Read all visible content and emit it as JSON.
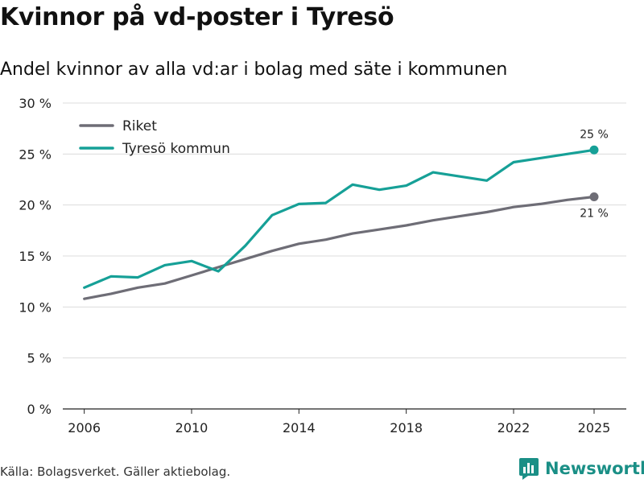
{
  "title": "Kvinnor på vd-poster i Tyresö",
  "subtitle": "Andel kvinnor av alla vd:ar i bolag med säte i kommunen",
  "source": "Källa: Bolagsverket. Gäller aktiebolag.",
  "brand": {
    "name": "Newsworthy",
    "icon": "newsworthy-logo-icon",
    "color": "#1a8f86"
  },
  "chart_data": {
    "type": "line",
    "title": "Kvinnor på vd-poster i Tyresö",
    "subtitle": "Andel kvinnor av alla vd:ar i bolag med säte i kommunen",
    "ylim": [
      0,
      30
    ],
    "xlim": [
      2005.2,
      2026.2
    ],
    "y_ticks": [
      0,
      5,
      10,
      15,
      20,
      25,
      30
    ],
    "y_tick_labels": [
      "0 %",
      "5 %",
      "10 %",
      "15 %",
      "20 %",
      "25 %",
      "30 %"
    ],
    "x_ticks": [
      2006,
      2010,
      2014,
      2018,
      2022,
      2025
    ],
    "x_tick_labels": [
      "2006",
      "2010",
      "2014",
      "2018",
      "2022",
      "2025"
    ],
    "grid": true,
    "legend_position": "top-left",
    "x": [
      2006,
      2007,
      2008,
      2009,
      2010,
      2011,
      2012,
      2013,
      2014,
      2015,
      2016,
      2017,
      2018,
      2019,
      2020,
      2021,
      2022,
      2023,
      2024,
      2025
    ],
    "series": [
      {
        "name": "Riket",
        "color": "#6e6d76",
        "values": [
          10.8,
          11.3,
          11.9,
          12.3,
          13.1,
          13.9,
          14.7,
          15.5,
          16.2,
          16.6,
          17.2,
          17.6,
          18.0,
          18.5,
          18.9,
          19.3,
          19.8,
          20.1,
          20.5,
          20.8
        ],
        "end_label": "21 %",
        "end_label_pos": "below"
      },
      {
        "name": "Tyresö kommun",
        "color": "#16a097",
        "values": [
          11.9,
          13.0,
          12.9,
          14.1,
          14.5,
          13.5,
          16.0,
          19.0,
          20.1,
          20.2,
          22.0,
          21.5,
          21.9,
          23.2,
          22.8,
          22.4,
          24.2,
          24.6,
          25.0,
          25.4
        ],
        "end_label": "25 %",
        "end_label_pos": "above"
      }
    ]
  }
}
